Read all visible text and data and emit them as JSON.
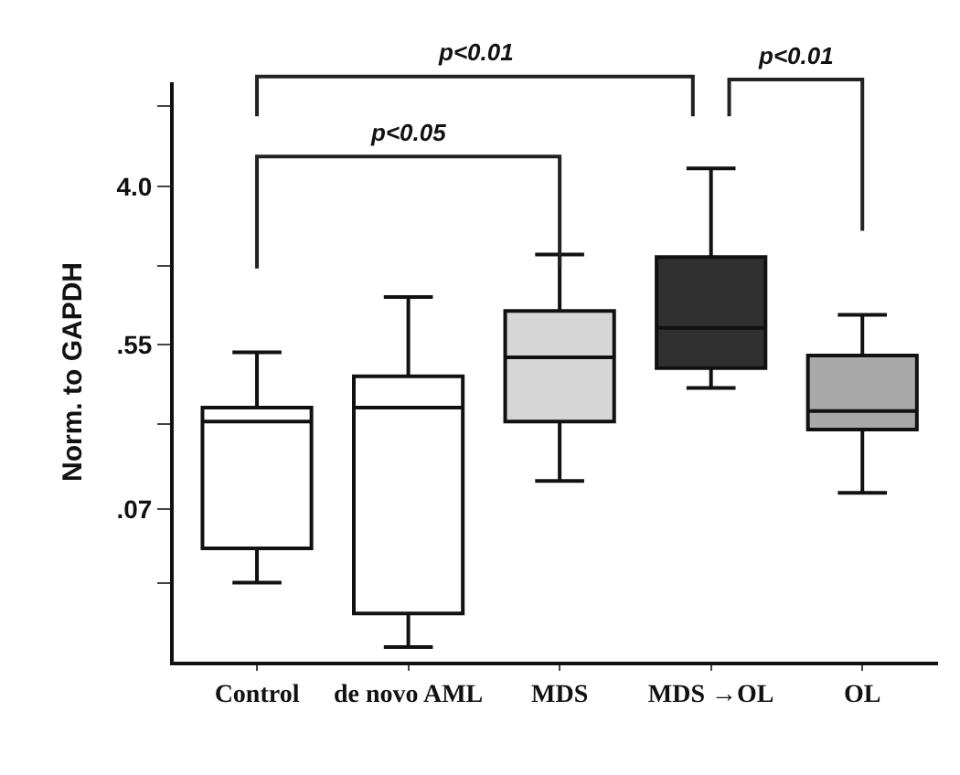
{
  "chart_data": {
    "type": "box",
    "ylabel": "Norm. to GAPDH",
    "categories": [
      "Control",
      "de novo AML",
      "MDS",
      "MDS →OL",
      "OL"
    ],
    "boxes": [
      {
        "low": 0.028,
        "q1": 0.043,
        "median": 0.21,
        "q3": 0.25,
        "high": 0.5
      },
      {
        "low": 0.0125,
        "q1": 0.019,
        "median": 0.25,
        "q3": 0.37,
        "high": 1.0
      },
      {
        "low": 0.1,
        "q1": 0.21,
        "median": 0.47,
        "q3": 0.84,
        "high": 1.7
      },
      {
        "low": 0.32,
        "q1": 0.41,
        "median": 0.68,
        "q3": 1.65,
        "high": 5.0
      },
      {
        "low": 0.086,
        "q1": 0.19,
        "median": 0.24,
        "q3": 0.48,
        "high": 0.8
      }
    ],
    "colors": [
      "#ffffff",
      "#ffffff",
      "#d6d6d6",
      "#303030",
      "#a9a9a9"
    ],
    "log": true,
    "ylim": [
      0.0104,
      14.7
    ],
    "yticks": [
      {
        "value": 0.0278,
        "label": null
      },
      {
        "value": 0.07,
        "label": ".07"
      },
      {
        "value": 0.204,
        "label": null
      },
      {
        "value": 0.55,
        "label": ".55"
      },
      {
        "value": 1.47,
        "label": null
      },
      {
        "value": 4.0,
        "label": "4.0"
      },
      {
        "value": 10.9,
        "label": null
      }
    ],
    "annotations": [
      "p<0.01",
      "p<0.05",
      "p<0.01"
    ]
  }
}
